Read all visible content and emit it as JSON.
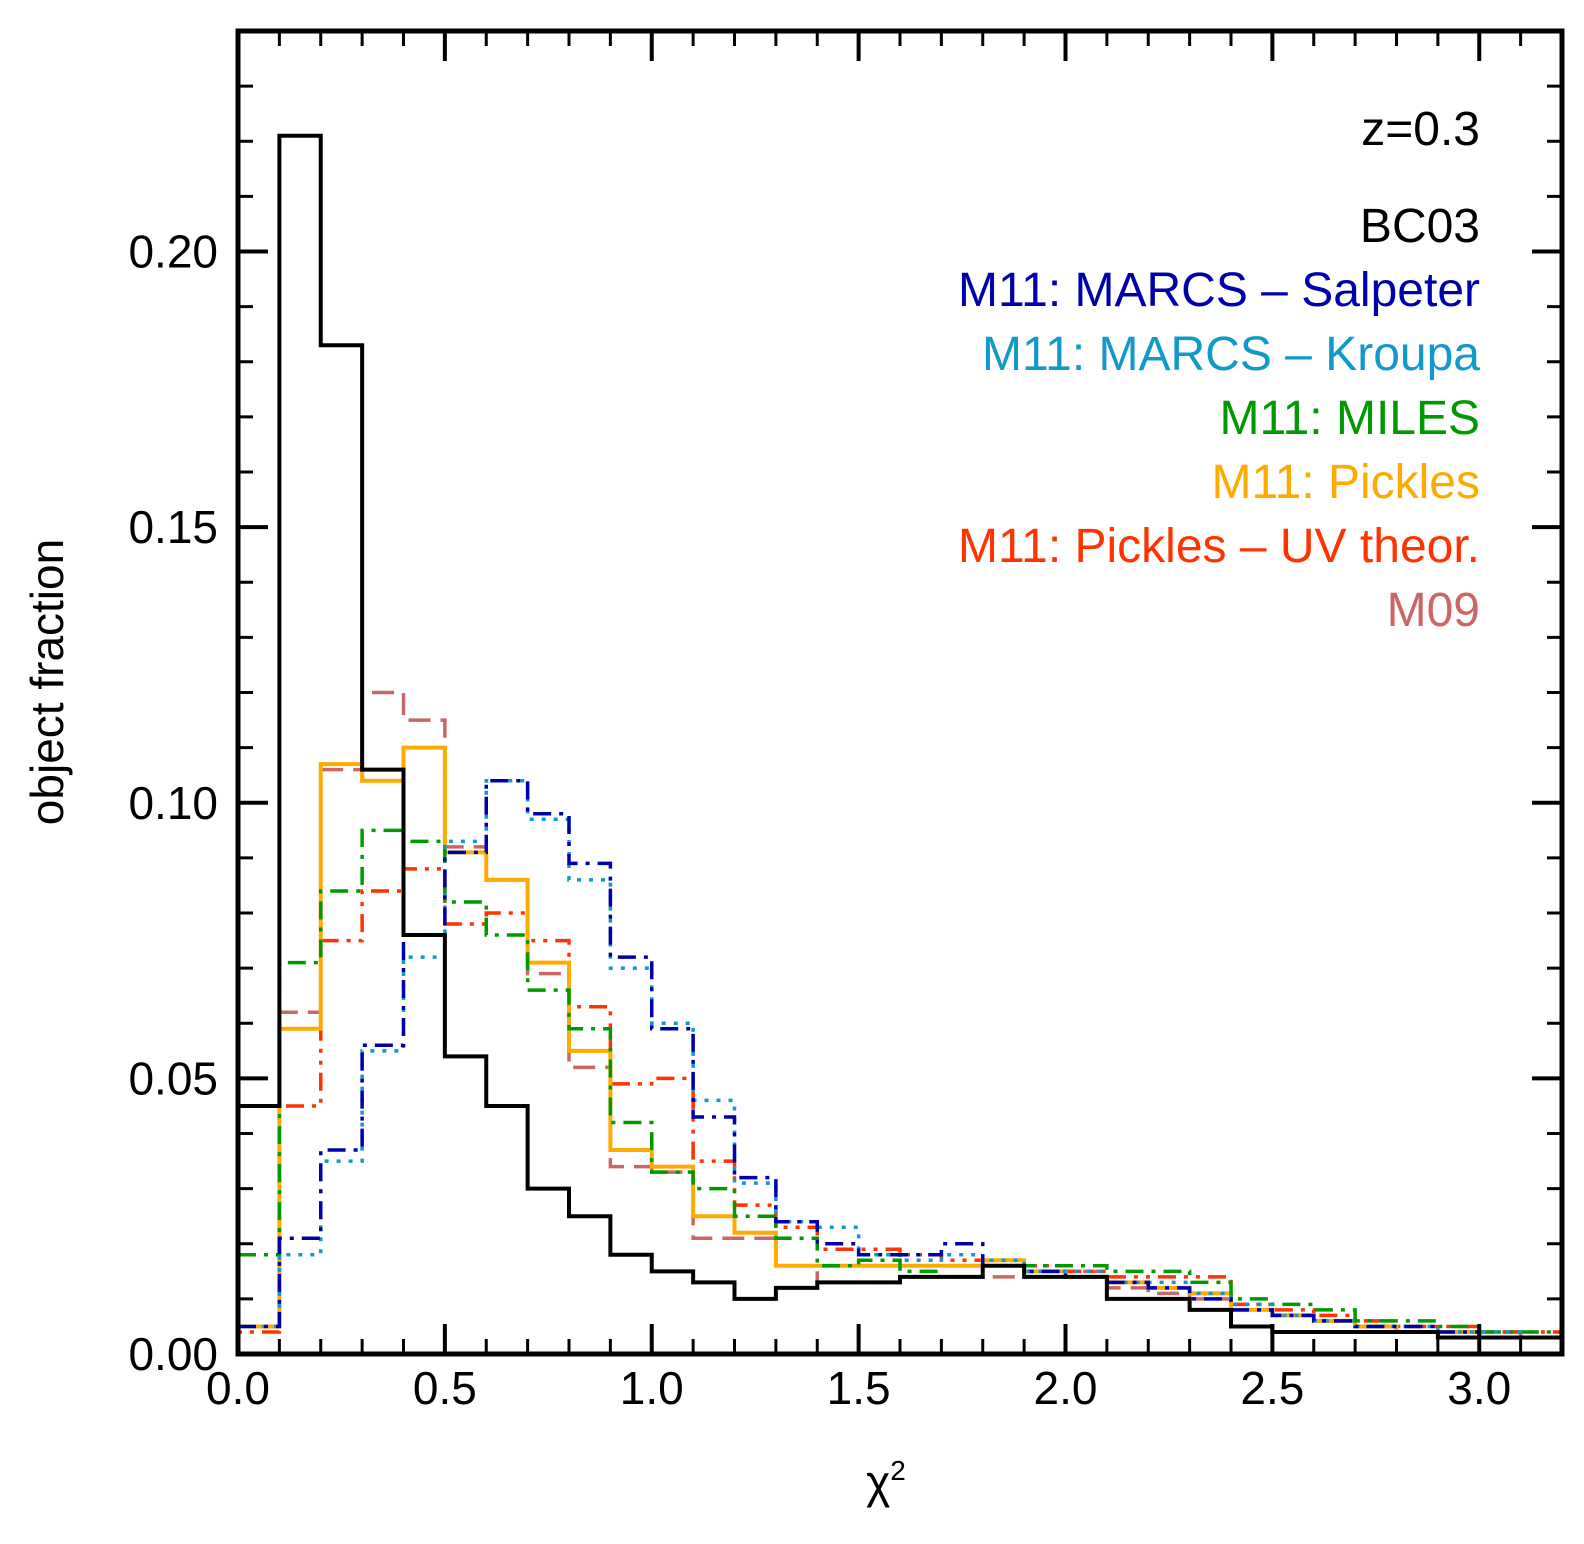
{
  "chart_data": {
    "type": "histogram",
    "xlabel": "χ",
    "xlabel_sup": "2",
    "ylabel": "object fraction",
    "xlim": [
      0.0,
      3.2
    ],
    "ylim": [
      0.0,
      0.24
    ],
    "xticks": [
      "0.0",
      "0.5",
      "1.0",
      "1.5",
      "2.0",
      "2.5",
      "3.0"
    ],
    "yticks": [
      "0.00",
      "0.05",
      "0.10",
      "0.15",
      "0.20"
    ],
    "annotation": "z=0.3",
    "legend_position": "top-right",
    "bin_edges": [
      0.0,
      0.1,
      0.2,
      0.3,
      0.4,
      0.5,
      0.6,
      0.7,
      0.8,
      0.9,
      1.0,
      1.1,
      1.2,
      1.3,
      1.4,
      1.5,
      1.6,
      1.7,
      1.8,
      1.9,
      2.0,
      2.1,
      2.2,
      2.3,
      2.4,
      2.5,
      2.6,
      2.7,
      2.8,
      2.9,
      3.0,
      3.1,
      3.2
    ],
    "series": [
      {
        "name": "BC03",
        "color": "#000000",
        "dash": "",
        "width": 4,
        "values": [
          0.045,
          0.221,
          0.183,
          0.106,
          0.076,
          0.054,
          0.045,
          0.03,
          0.025,
          0.018,
          0.015,
          0.013,
          0.01,
          0.012,
          0.013,
          0.013,
          0.014,
          0.014,
          0.016,
          0.014,
          0.014,
          0.01,
          0.01,
          0.008,
          0.005,
          0.004,
          0.004,
          0.004,
          0.004,
          0.003,
          0.003,
          0.003
        ]
      },
      {
        "name": "M11: MARCS – Salpeter",
        "color": "#0000aa",
        "dash": "18,8,4,8",
        "width": 3.5,
        "values": [
          0.005,
          0.021,
          0.037,
          0.056,
          0.076,
          0.091,
          0.104,
          0.098,
          0.089,
          0.072,
          0.059,
          0.043,
          0.032,
          0.024,
          0.02,
          0.018,
          0.018,
          0.02,
          0.016,
          0.015,
          0.014,
          0.013,
          0.012,
          0.01,
          0.008,
          0.007,
          0.006,
          0.005,
          0.005,
          0.004,
          0.003,
          0.003
        ]
      },
      {
        "name": "M11: MARCS – Kroupa",
        "color": "#1199cc",
        "dash": "4,8",
        "width": 3.5,
        "values": [
          0.005,
          0.018,
          0.035,
          0.055,
          0.072,
          0.093,
          0.104,
          0.097,
          0.086,
          0.07,
          0.06,
          0.046,
          0.031,
          0.024,
          0.023,
          0.018,
          0.017,
          0.018,
          0.017,
          0.015,
          0.015,
          0.013,
          0.013,
          0.011,
          0.009,
          0.007,
          0.006,
          0.005,
          0.005,
          0.004,
          0.004,
          0.003
        ]
      },
      {
        "name": "M11: MILES",
        "color": "#009900",
        "dash": "18,8,4,8",
        "width": 3.5,
        "values": [
          0.018,
          0.071,
          0.084,
          0.095,
          0.093,
          0.082,
          0.076,
          0.066,
          0.059,
          0.042,
          0.033,
          0.03,
          0.025,
          0.021,
          0.016,
          0.017,
          0.015,
          0.014,
          0.016,
          0.016,
          0.016,
          0.015,
          0.015,
          0.013,
          0.01,
          0.009,
          0.008,
          0.006,
          0.006,
          0.005,
          0.004,
          0.004
        ]
      },
      {
        "name": "M11: Pickles",
        "color": "#ffaa00",
        "dash": "",
        "width": 4,
        "values": [
          0.005,
          0.059,
          0.107,
          0.104,
          0.11,
          0.091,
          0.086,
          0.071,
          0.055,
          0.037,
          0.034,
          0.025,
          0.022,
          0.016,
          0.016,
          0.016,
          0.016,
          0.016,
          0.017,
          0.015,
          0.014,
          0.013,
          0.012,
          0.011,
          0.008,
          0.007,
          0.006,
          0.005,
          0.004,
          0.004,
          0.003,
          0.003
        ]
      },
      {
        "name": "M11: Pickles – UV theor.",
        "color": "#ff3300",
        "dash": "4,8,4,8,18,8",
        "width": 3.5,
        "values": [
          0.004,
          0.045,
          0.075,
          0.084,
          0.088,
          0.078,
          0.08,
          0.075,
          0.063,
          0.049,
          0.05,
          0.035,
          0.027,
          0.023,
          0.019,
          0.019,
          0.018,
          0.017,
          0.016,
          0.016,
          0.015,
          0.014,
          0.014,
          0.014,
          0.009,
          0.008,
          0.007,
          0.006,
          0.005,
          0.005,
          0.004,
          0.004
        ]
      },
      {
        "name": "M09",
        "color": "#cc6666",
        "dash": "22,10",
        "width": 3.5,
        "values": [
          0.005,
          0.062,
          0.106,
          0.12,
          0.115,
          0.092,
          0.086,
          0.069,
          0.052,
          0.034,
          0.033,
          0.021,
          0.021,
          0.016,
          0.013,
          0.013,
          0.014,
          0.014,
          0.014,
          0.014,
          0.015,
          0.012,
          0.011,
          0.01,
          0.008,
          0.007,
          0.006,
          0.005,
          0.004,
          0.004,
          0.004,
          0.003
        ]
      }
    ]
  }
}
